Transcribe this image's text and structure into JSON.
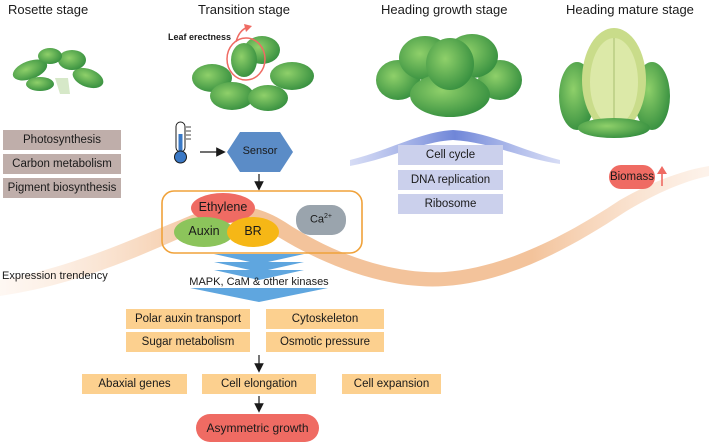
{
  "stages": {
    "rosette": "Rosette stage",
    "transition": "Transition stage",
    "heading_growth": "Heading growth stage",
    "heading_mature": "Heading mature stage"
  },
  "leaf_erectness": "Leaf erectness",
  "rosette_processes": [
    "Photosynthesis",
    "Carbon metabolism",
    "Pigment biosynthesis"
  ],
  "sensor": "Sensor",
  "hormones": {
    "ethylene": "Ethylene",
    "auxin": "Auxin",
    "br": "BR",
    "ca": "Ca",
    "ca_sup": "2+"
  },
  "expression_trendency": "Expression trendency",
  "kinases": "MAPK, CaM & other kinases",
  "heading_processes": [
    "Cell cycle",
    "DNA replication",
    "Ribosome"
  ],
  "biomass": "Biomass",
  "transition_processes": [
    "Polar auxin transport",
    "Cytoskeleton",
    "Sugar metabolism",
    "Osmotic pressure"
  ],
  "cell_row": [
    "Abaxial genes",
    "Cell elongation",
    "Cell expansion"
  ],
  "asymmetric_growth": "Asymmetric growth",
  "colors": {
    "gray_box": "#bfaeaa",
    "lavender_box": "#cbd0ec",
    "tan_box": "#fcd08f",
    "red": "#ef6b63",
    "orange_border": "#f0a23a",
    "sensor_blue": "#5b8cc7",
    "auxin_green": "#8cc45b",
    "br_yellow": "#f6b716",
    "ca_gray": "#9aa4ad",
    "wave_peach": "#f3c39b",
    "wave_blue": "#6f86d8",
    "leaf_green": "#3e9c45"
  }
}
